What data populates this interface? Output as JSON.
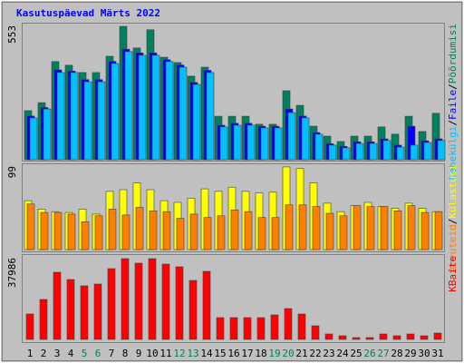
{
  "chart_data": [
    {
      "type": "bar",
      "title": "Kasutuspäevad Märts 2022",
      "ylim": [
        0,
        553
      ],
      "yticks": [
        553
      ],
      "separator": "/",
      "series": [
        {
          "name": "Pöördumisi",
          "color": "#00805c",
          "values": [
            202,
            235,
            404,
            389,
            359,
            359,
            426,
            549,
            460,
            535,
            422,
            400,
            344,
            381,
            179,
            179,
            179,
            146,
            146,
            284,
            224,
            138,
            97,
            75,
            97,
            97,
            135,
            105,
            179,
            116,
            191
          ]
        },
        {
          "name": "Faile",
          "color": "#0000ff",
          "values": [
            180,
            215,
            370,
            365,
            330,
            330,
            405,
            455,
            440,
            440,
            412,
            390,
            318,
            368,
            142,
            150,
            150,
            138,
            138,
            209,
            180,
            112,
            66,
            55,
            74,
            74,
            86,
            60,
            138,
            78,
            86
          ]
        },
        {
          "name": "Lehekülgi",
          "color": "#00c0ff",
          "values": [
            172,
            209,
            359,
            359,
            321,
            321,
            396,
            445,
            430,
            430,
            404,
            381,
            310,
            359,
            135,
            142,
            142,
            131,
            131,
            194,
            172,
            105,
            60,
            49,
            67,
            67,
            79,
            52,
            60,
            71,
            79
          ]
        }
      ]
    },
    {
      "type": "bar",
      "ylim": [
        0,
        99
      ],
      "yticks": [
        99
      ],
      "separator": "/",
      "series": [
        {
          "name": "Külastusi",
          "color": "#ffff00",
          "values": [
            58,
            48,
            45,
            44,
            48,
            42,
            69,
            71,
            79,
            71,
            58,
            56,
            61,
            72,
            69,
            74,
            69,
            67,
            68,
            98,
            96,
            79,
            55,
            45,
            52,
            56,
            51,
            49,
            55,
            49,
            45
          ]
        },
        {
          "name": "Arvuteid",
          "color": "#ff8000",
          "values": [
            54,
            44,
            44,
            42,
            33,
            40,
            48,
            41,
            50,
            46,
            45,
            37,
            42,
            38,
            40,
            47,
            45,
            38,
            38,
            53,
            53,
            51,
            43,
            40,
            52,
            51,
            51,
            46,
            52,
            44,
            45
          ]
        }
      ]
    },
    {
      "type": "bar",
      "ylim": [
        0,
        37986
      ],
      "yticks": [
        37986
      ],
      "categories": [
        "1",
        "2",
        "3",
        "4",
        "5",
        "6",
        "7",
        "8",
        "9",
        "10",
        "11",
        "12",
        "13",
        "14",
        "15",
        "16",
        "17",
        "18",
        "19",
        "20",
        "21",
        "22",
        "23",
        "24",
        "25",
        "26",
        "27",
        "28",
        "29",
        "30",
        "31"
      ],
      "category_colors": [
        "#000",
        "#000",
        "#000",
        "#000",
        "#00805c",
        "#00805c",
        "#000",
        "#000",
        "#000",
        "#000",
        "#000",
        "#00805c",
        "#00805c",
        "#000",
        "#000",
        "#000",
        "#000",
        "#000",
        "#00805c",
        "#00805c",
        "#000",
        "#000",
        "#000",
        "#000",
        "#000",
        "#00805c",
        "#00805c",
        "#000",
        "#000",
        "#000",
        "#000"
      ],
      "series": [
        {
          "name": "KBaite",
          "color": "#ff0000",
          "values": [
            11818,
            18570,
            31232,
            27856,
            24900,
            25740,
            32920,
            37563,
            35450,
            37563,
            35030,
            33760,
            27430,
            31650,
            10130,
            10130,
            10130,
            10130,
            11400,
            14350,
            11820,
            6330,
            2530,
            1690,
            840,
            840,
            2530,
            1690,
            2530,
            1690,
            2950
          ]
        }
      ]
    }
  ]
}
